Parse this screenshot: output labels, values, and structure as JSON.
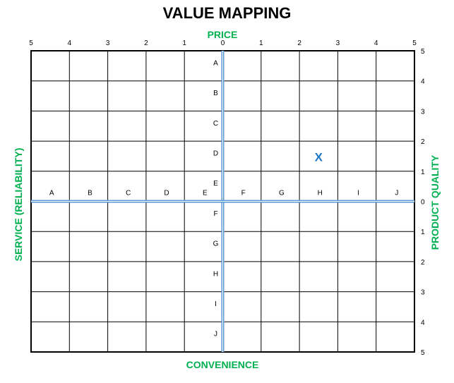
{
  "title": "VALUE MAPPING",
  "axes": {
    "top": "PRICE",
    "bottom": "CONVENIENCE",
    "left": "SERVICE (RELIABILITY)",
    "right": "PRODUCT QUALITY"
  },
  "top_ticks": [
    "5",
    "4",
    "3",
    "2",
    "1",
    "0",
    "1",
    "2",
    "3",
    "4",
    "5"
  ],
  "right_ticks": [
    "5",
    "4",
    "3",
    "2",
    "1",
    "0",
    "1",
    "2",
    "3",
    "4",
    "5"
  ],
  "vertical_letters": [
    "A",
    "B",
    "C",
    "D",
    "E",
    "F",
    "G",
    "H",
    "I",
    "J"
  ],
  "horizontal_letters": [
    "A",
    "B",
    "C",
    "D",
    "E",
    "F",
    "G",
    "H",
    "I",
    "J"
  ],
  "marker": {
    "label": "X",
    "column": "H",
    "row": "D"
  },
  "colors": {
    "grid": "#000000",
    "center_axis": "#5b9bd5",
    "label_green": "#00b050",
    "marker": "#1f77c8"
  }
}
